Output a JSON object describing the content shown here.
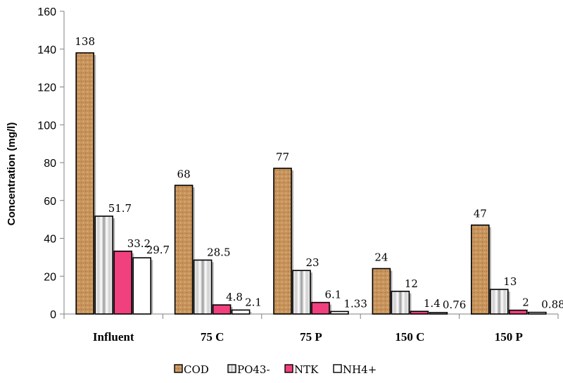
{
  "chart_data": {
    "type": "bar",
    "title": "",
    "xlabel": "",
    "ylabel": "Concentration (mg/l)",
    "ylim": [
      0,
      160
    ],
    "yticks": [
      0,
      20,
      40,
      60,
      80,
      100,
      120,
      140,
      160
    ],
    "categories": [
      "Influent",
      "75 C",
      "75 P",
      "150 C",
      "150 P"
    ],
    "series": [
      {
        "name": "COD",
        "values": [
          138,
          68,
          77,
          24,
          47
        ],
        "labels": [
          "138",
          "68",
          "77",
          "24",
          "47"
        ],
        "color": "#c8955d"
      },
      {
        "name": "PO43-",
        "values": [
          51.7,
          28.5,
          23,
          12,
          13
        ],
        "labels": [
          "51.7",
          "28.5",
          "23",
          "12",
          "13"
        ],
        "color": "#d9d9d9"
      },
      {
        "name": "NTK",
        "values": [
          33.2,
          4.8,
          6.1,
          1.4,
          2
        ],
        "labels": [
          "33.2",
          "4.8",
          "6.1",
          "1.4",
          "2"
        ],
        "color": "#f0407e"
      },
      {
        "name": "NH4+",
        "values": [
          29.7,
          2.1,
          1.33,
          0.76,
          0.88
        ],
        "labels": [
          "29.7",
          "2.1",
          "1.33",
          "0.76",
          "0.88"
        ],
        "color": "#ffffff"
      }
    ],
    "grid": false,
    "legend": "bottom"
  }
}
